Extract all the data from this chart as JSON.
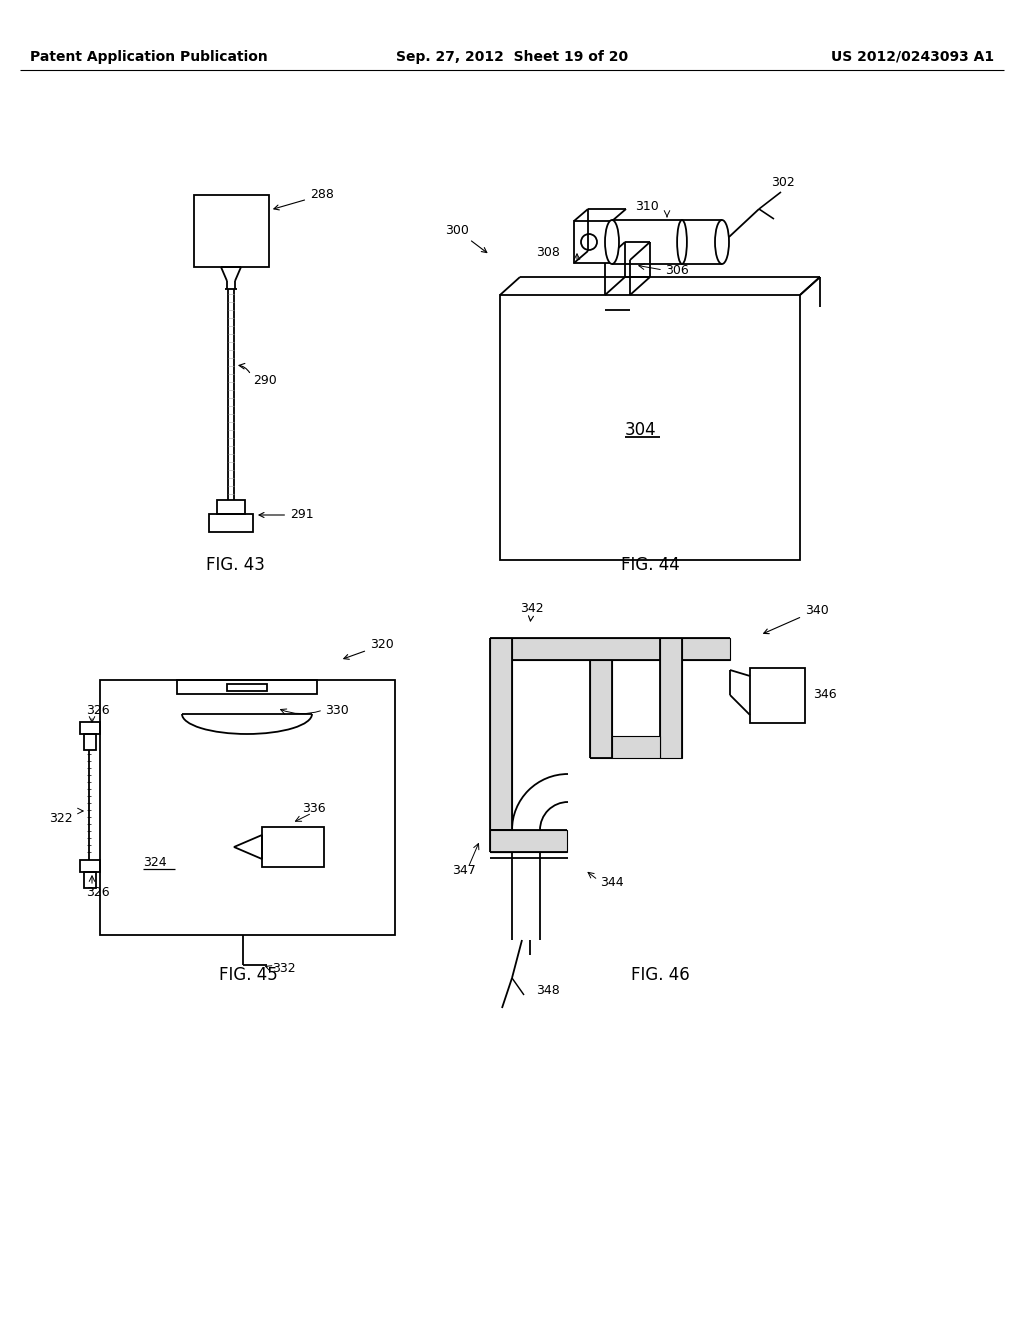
{
  "background_color": "#ffffff",
  "header_left": "Patent Application Publication",
  "header_center": "Sep. 27, 2012  Sheet 19 of 20",
  "header_right": "US 2012/0243093 A1",
  "fig43_label": "FIG. 43",
  "fig44_label": "FIG. 44",
  "fig45_label": "FIG. 45",
  "fig46_label": "FIG. 46",
  "line_color": "#000000",
  "line_width": 1.3,
  "annotation_fontsize": 9,
  "label_fontsize": 12,
  "header_fontsize": 10
}
